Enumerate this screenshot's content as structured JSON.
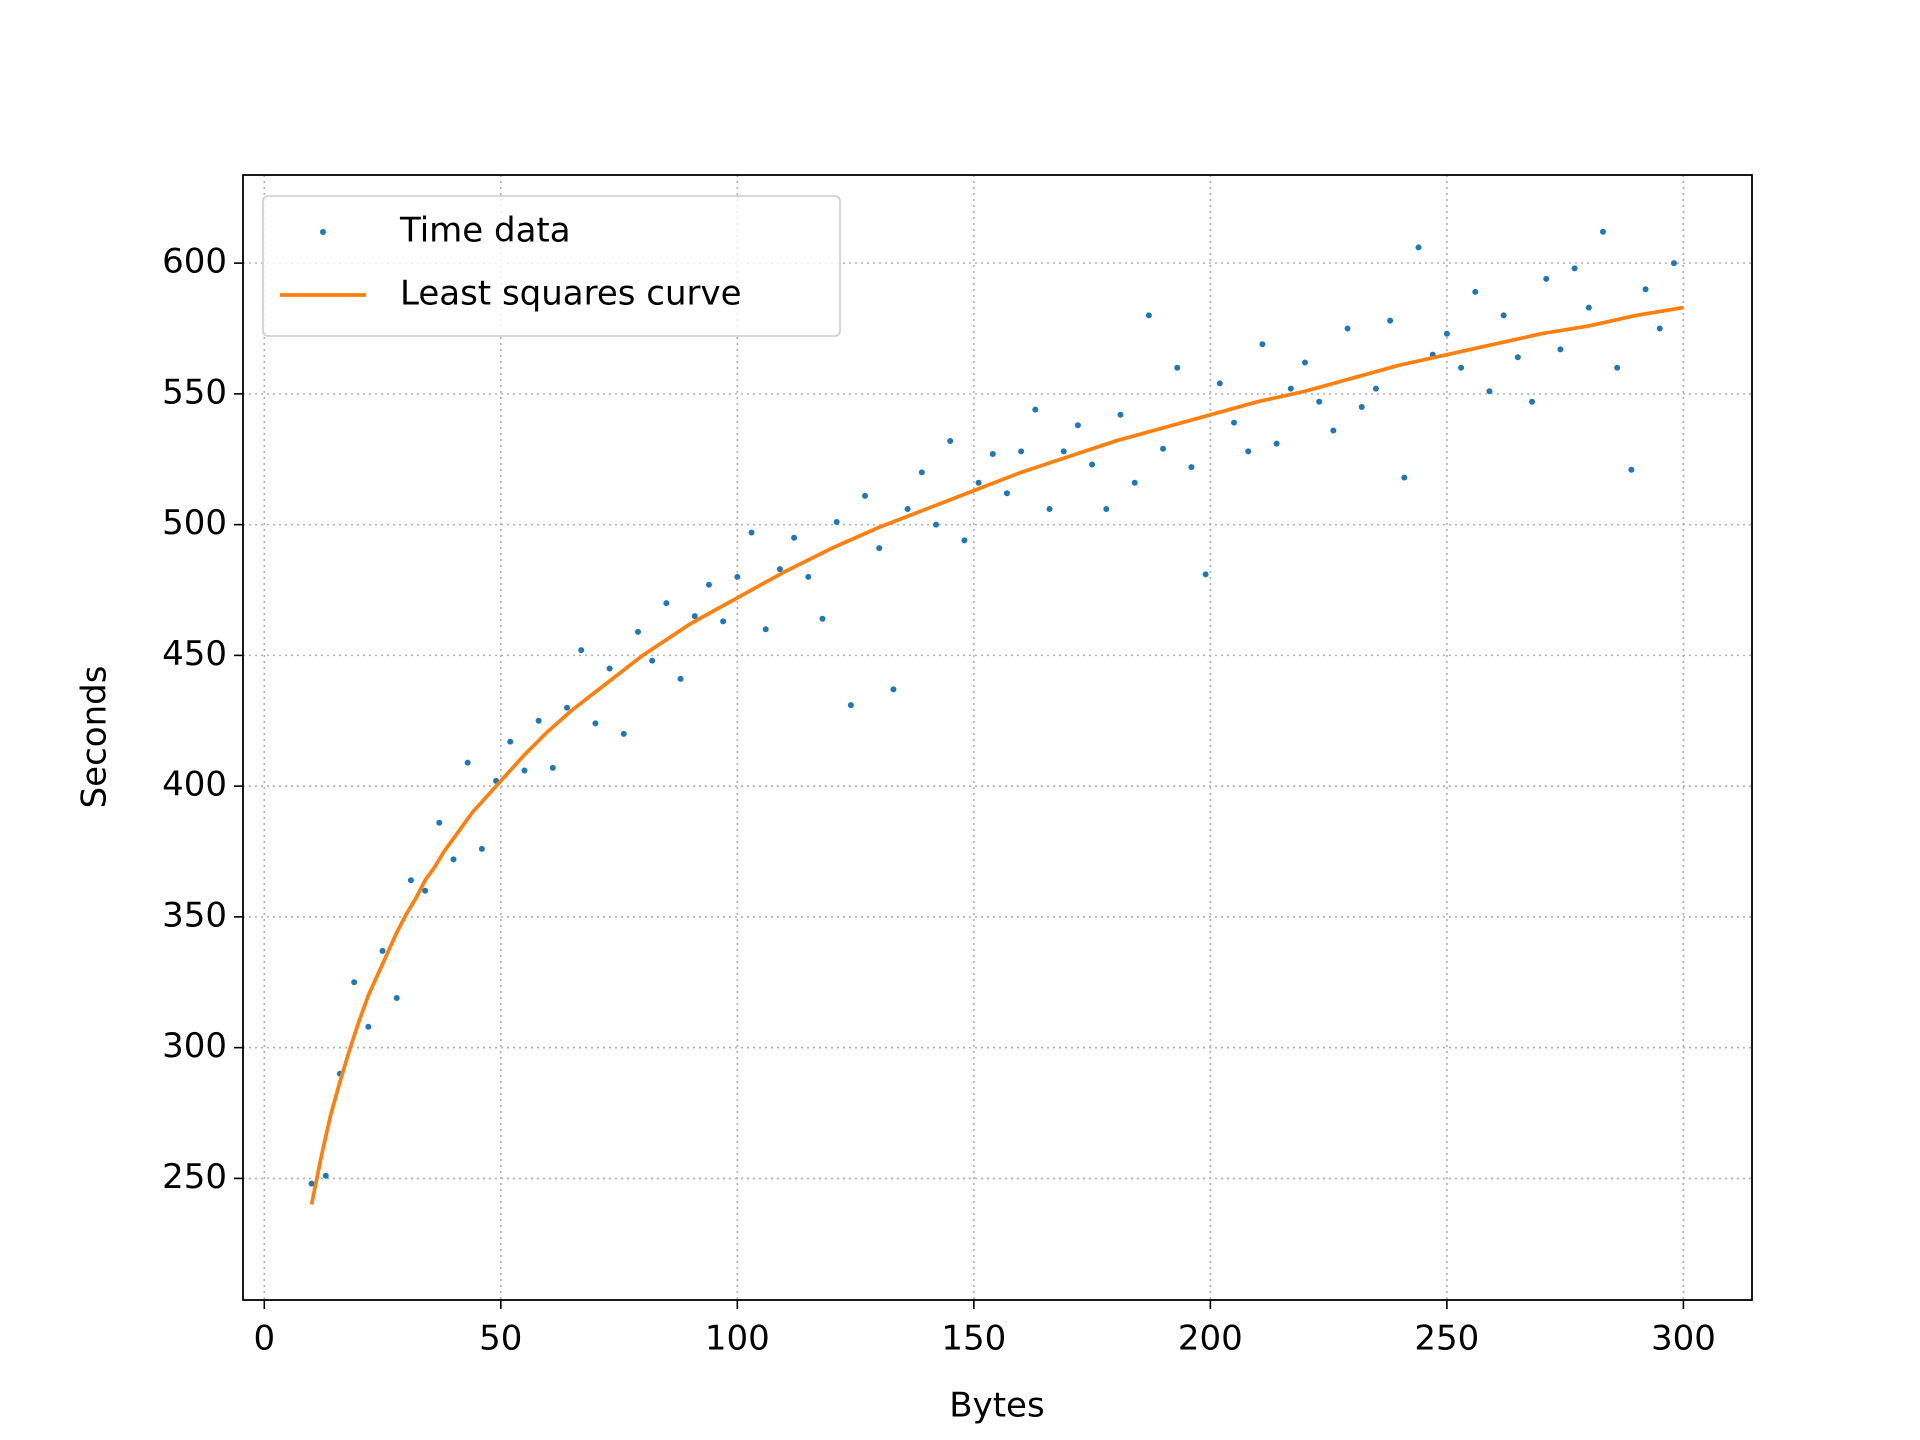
{
  "chart_data": {
    "type": "scatter",
    "xlabel": "Bytes",
    "ylabel": "Seconds",
    "xlim": [
      -4.5,
      314.5
    ],
    "ylim": [
      203.5,
      633.7
    ],
    "xticks": [
      0,
      50,
      100,
      150,
      200,
      250,
      300
    ],
    "yticks": [
      250,
      300,
      350,
      400,
      450,
      500,
      550,
      600
    ],
    "grid": true,
    "legend": "upper-left",
    "series": [
      {
        "name": "Time data",
        "color": "#1f77b4",
        "mode": "markers",
        "x": [
          10,
          13,
          16,
          19,
          22,
          25,
          28,
          31,
          34,
          37,
          40,
          43,
          46,
          49,
          52,
          55,
          58,
          61,
          64,
          67,
          70,
          73,
          76,
          79,
          82,
          85,
          88,
          91,
          94,
          97,
          100,
          103,
          106,
          109,
          112,
          115,
          118,
          121,
          124,
          127,
          130,
          133,
          136,
          139,
          142,
          145,
          148,
          151,
          154,
          157,
          160,
          163,
          166,
          169,
          172,
          175,
          178,
          181,
          184,
          187,
          190,
          193,
          196,
          199,
          202,
          205,
          208,
          211,
          214,
          217,
          220,
          223,
          226,
          229,
          232,
          235,
          238,
          241,
          244,
          247,
          250,
          253,
          256,
          259,
          262,
          265,
          268,
          271,
          274,
          277,
          280,
          283,
          286,
          289,
          292,
          295,
          298
        ],
        "values": [
          248,
          251,
          290,
          325,
          308,
          337,
          319,
          364,
          360,
          386,
          372,
          409,
          376,
          402,
          417,
          406,
          425,
          407,
          430,
          452,
          424,
          445,
          420,
          459,
          448,
          470,
          441,
          465,
          477,
          463,
          480,
          497,
          460,
          483,
          495,
          480,
          464,
          501,
          431,
          511,
          491,
          437,
          506,
          520,
          500,
          532,
          494,
          516,
          527,
          512,
          528,
          544,
          506,
          528,
          538,
          523,
          506,
          542,
          516,
          580,
          529,
          560,
          522,
          481,
          554,
          539,
          528,
          569,
          531,
          552,
          562,
          547,
          536,
          575,
          545,
          552,
          578,
          518,
          606,
          565,
          573,
          560,
          589,
          551,
          580,
          564,
          547,
          594,
          567,
          598,
          583,
          612,
          560,
          521,
          590,
          575,
          600
        ]
      },
      {
        "name": "Least squares curve",
        "color": "#ff7f0e",
        "mode": "line",
        "x": [
          10,
          12,
          14,
          16,
          18,
          20,
          22,
          24,
          26,
          28,
          30,
          32,
          34,
          36,
          38,
          40,
          42,
          44,
          46,
          48,
          50,
          55,
          60,
          65,
          70,
          75,
          80,
          85,
          90,
          95,
          100,
          110,
          120,
          130,
          140,
          150,
          160,
          170,
          180,
          190,
          200,
          210,
          220,
          230,
          240,
          250,
          260,
          270,
          280,
          290,
          300
        ],
        "values": [
          240,
          258,
          274,
          287,
          299,
          310,
          320,
          328,
          336,
          344,
          351,
          357,
          364,
          369,
          375,
          380,
          385,
          390,
          394,
          398,
          402,
          412,
          421,
          429,
          436,
          443,
          450,
          456,
          462,
          467,
          472,
          482,
          491,
          499,
          506,
          513,
          520,
          526,
          532,
          537,
          542,
          547,
          551,
          556,
          561,
          565,
          569,
          573,
          576,
          580,
          583
        ]
      }
    ]
  }
}
